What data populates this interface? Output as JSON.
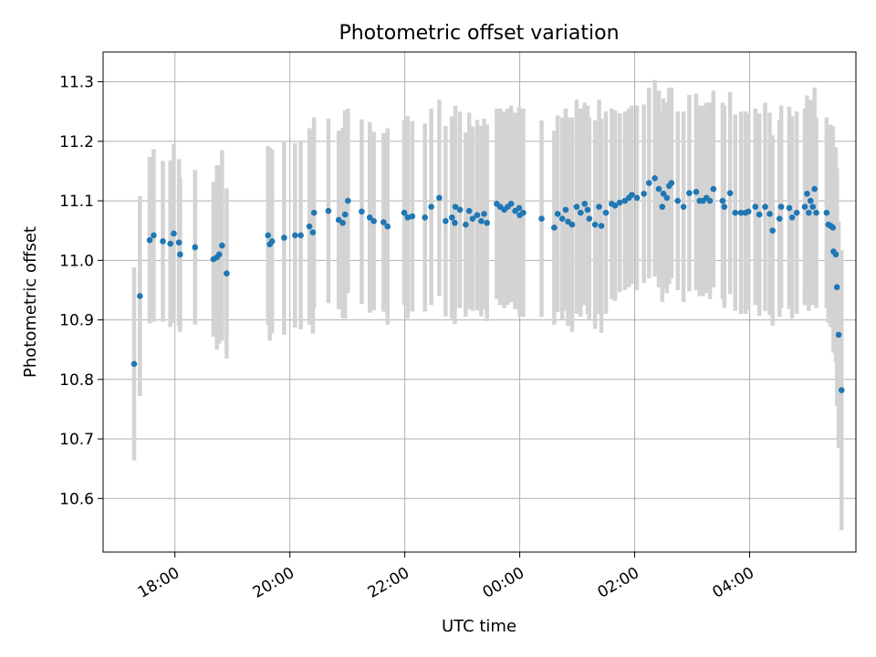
{
  "chart_data": {
    "type": "scatter",
    "title": "Photometric offset variation",
    "xlabel": "UTC time",
    "ylabel": "Photometric offset",
    "x_unit": "hours",
    "xlim": [
      16.75,
      29.85
    ],
    "ylim": [
      10.51,
      11.35
    ],
    "xticks": [
      {
        "value": 18,
        "label": "18:00"
      },
      {
        "value": 20,
        "label": "20:00"
      },
      {
        "value": 22,
        "label": "22:00"
      },
      {
        "value": 24,
        "label": "00:00"
      },
      {
        "value": 26,
        "label": "02:00"
      },
      {
        "value": 28,
        "label": "04:00"
      }
    ],
    "yticks": [
      {
        "value": 10.6,
        "label": "10.6"
      },
      {
        "value": 10.7,
        "label": "10.7"
      },
      {
        "value": 10.8,
        "label": "10.8"
      },
      {
        "value": 10.9,
        "label": "10.9"
      },
      {
        "value": 11.0,
        "label": "11.0"
      },
      {
        "value": 11.1,
        "label": "11.1"
      },
      {
        "value": 11.2,
        "label": "11.2"
      },
      {
        "value": 11.3,
        "label": "11.3"
      }
    ],
    "grid": true,
    "colors": {
      "points": "#1f77b4",
      "errorbars": "#d3d3d3",
      "grid": "#b0b0b0"
    },
    "series": [
      {
        "points": [
          [
            17.29,
            10.826,
            0.162
          ],
          [
            17.39,
            10.94,
            0.168
          ],
          [
            17.56,
            11.034,
            0.14
          ],
          [
            17.63,
            11.042,
            0.145
          ],
          [
            17.79,
            11.032,
            0.135
          ],
          [
            17.92,
            11.028,
            0.14
          ],
          [
            17.98,
            11.045,
            0.15
          ],
          [
            18.07,
            11.03,
            0.14
          ],
          [
            18.09,
            11.01,
            0.13
          ],
          [
            18.35,
            11.022,
            0.13
          ],
          [
            18.67,
            11.002,
            0.13
          ],
          [
            18.73,
            11.005,
            0.155
          ],
          [
            18.77,
            11.01,
            0.15
          ],
          [
            18.82,
            11.025,
            0.16
          ],
          [
            18.9,
            10.978,
            0.143
          ],
          [
            19.62,
            11.042,
            0.15
          ],
          [
            19.65,
            11.027,
            0.162
          ],
          [
            19.69,
            11.032,
            0.154
          ],
          [
            19.9,
            11.038,
            0.163
          ],
          [
            20.09,
            11.042,
            0.155
          ],
          [
            20.19,
            11.042,
            0.158
          ],
          [
            20.34,
            11.057,
            0.165
          ],
          [
            20.4,
            11.047,
            0.17
          ],
          [
            20.42,
            11.08,
            0.16
          ],
          [
            20.67,
            11.083,
            0.155
          ],
          [
            20.85,
            11.068,
            0.15
          ],
          [
            20.92,
            11.063,
            0.16
          ],
          [
            20.96,
            11.077,
            0.175
          ],
          [
            21.01,
            11.1,
            0.155
          ],
          [
            21.25,
            11.082,
            0.155
          ],
          [
            21.39,
            11.072,
            0.16
          ],
          [
            21.46,
            11.066,
            0.15
          ],
          [
            21.63,
            11.064,
            0.15
          ],
          [
            21.7,
            11.057,
            0.165
          ],
          [
            21.99,
            11.08,
            0.155
          ],
          [
            22.05,
            11.072,
            0.17
          ],
          [
            22.13,
            11.074,
            0.16
          ],
          [
            22.35,
            11.072,
            0.158
          ],
          [
            22.46,
            11.09,
            0.165
          ],
          [
            22.6,
            11.105,
            0.165
          ],
          [
            22.71,
            11.066,
            0.16
          ],
          [
            22.82,
            11.072,
            0.17
          ],
          [
            22.87,
            11.063,
            0.17
          ],
          [
            22.88,
            11.09,
            0.17
          ],
          [
            22.96,
            11.085,
            0.165
          ],
          [
            23.06,
            11.06,
            0.155
          ],
          [
            23.12,
            11.083,
            0.165
          ],
          [
            23.18,
            11.07,
            0.155
          ],
          [
            23.26,
            11.076,
            0.16
          ],
          [
            23.33,
            11.066,
            0.16
          ],
          [
            23.38,
            11.078,
            0.16
          ],
          [
            23.43,
            11.063,
            0.165
          ],
          [
            23.6,
            11.095,
            0.16
          ],
          [
            23.66,
            11.09,
            0.165
          ],
          [
            23.73,
            11.085,
            0.165
          ],
          [
            23.79,
            11.09,
            0.165
          ],
          [
            23.85,
            11.095,
            0.165
          ],
          [
            23.92,
            11.083,
            0.165
          ],
          [
            23.99,
            11.088,
            0.17
          ],
          [
            24.0,
            11.076,
            0.17
          ],
          [
            24.06,
            11.08,
            0.175
          ],
          [
            24.38,
            11.07,
            0.165
          ],
          [
            24.6,
            11.055,
            0.163
          ],
          [
            24.66,
            11.078,
            0.165
          ],
          [
            24.74,
            11.07,
            0.17
          ],
          [
            24.8,
            11.085,
            0.17
          ],
          [
            24.84,
            11.065,
            0.175
          ],
          [
            24.91,
            11.06,
            0.18
          ],
          [
            24.99,
            11.09,
            0.18
          ],
          [
            25.06,
            11.08,
            0.175
          ],
          [
            25.13,
            11.095,
            0.17
          ],
          [
            25.18,
            11.085,
            0.175
          ],
          [
            25.21,
            11.07,
            0.17
          ],
          [
            25.31,
            11.06,
            0.175
          ],
          [
            25.38,
            11.09,
            0.18
          ],
          [
            25.42,
            11.058,
            0.18
          ],
          [
            25.5,
            11.08,
            0.17
          ],
          [
            25.6,
            11.095,
            0.16
          ],
          [
            25.66,
            11.092,
            0.16
          ],
          [
            25.74,
            11.097,
            0.15
          ],
          [
            25.83,
            11.1,
            0.15
          ],
          [
            25.9,
            11.105,
            0.15
          ],
          [
            25.95,
            11.11,
            0.15
          ],
          [
            26.04,
            11.105,
            0.155
          ],
          [
            26.16,
            11.112,
            0.15
          ],
          [
            26.25,
            11.13,
            0.16
          ],
          [
            26.35,
            11.138,
            0.165
          ],
          [
            26.42,
            11.12,
            0.165
          ],
          [
            26.48,
            11.09,
            0.16
          ],
          [
            26.5,
            11.112,
            0.16
          ],
          [
            26.56,
            11.105,
            0.16
          ],
          [
            26.6,
            11.125,
            0.165
          ],
          [
            26.64,
            11.13,
            0.16
          ],
          [
            26.75,
            11.1,
            0.15
          ],
          [
            26.85,
            11.09,
            0.16
          ],
          [
            26.95,
            11.113,
            0.165
          ],
          [
            27.07,
            11.115,
            0.165
          ],
          [
            27.13,
            11.1,
            0.16
          ],
          [
            27.19,
            11.1,
            0.16
          ],
          [
            27.25,
            11.105,
            0.16
          ],
          [
            27.31,
            11.1,
            0.165
          ],
          [
            27.37,
            11.12,
            0.165
          ],
          [
            27.53,
            11.1,
            0.165
          ],
          [
            27.56,
            11.09,
            0.17
          ],
          [
            27.66,
            11.113,
            0.17
          ],
          [
            27.75,
            11.08,
            0.165
          ],
          [
            27.85,
            11.08,
            0.17
          ],
          [
            27.93,
            11.08,
            0.17
          ],
          [
            27.98,
            11.082,
            0.165
          ],
          [
            28.1,
            11.09,
            0.165
          ],
          [
            28.17,
            11.077,
            0.17
          ],
          [
            28.27,
            11.09,
            0.175
          ],
          [
            28.35,
            11.078,
            0.17
          ],
          [
            28.4,
            11.05,
            0.16
          ],
          [
            28.52,
            11.07,
            0.165
          ],
          [
            28.55,
            11.09,
            0.17
          ],
          [
            28.69,
            11.088,
            0.17
          ],
          [
            28.74,
            11.072,
            0.17
          ],
          [
            28.82,
            11.08,
            0.17
          ],
          [
            28.96,
            11.09,
            0.165
          ],
          [
            29.0,
            11.112,
            0.165
          ],
          [
            29.03,
            11.08,
            0.165
          ],
          [
            29.06,
            11.1,
            0.17
          ],
          [
            29.1,
            11.09,
            0.165
          ],
          [
            29.13,
            11.12,
            0.17
          ],
          [
            29.16,
            11.08,
            0.16
          ],
          [
            29.34,
            11.08,
            0.16
          ],
          [
            29.37,
            11.06,
            0.165
          ],
          [
            29.41,
            11.058,
            0.17
          ],
          [
            29.45,
            11.055,
            0.17
          ],
          [
            29.46,
            11.015,
            0.17
          ],
          [
            29.5,
            11.01,
            0.18
          ],
          [
            29.52,
            10.955,
            0.2
          ],
          [
            29.55,
            10.875,
            0.19
          ],
          [
            29.6,
            10.782,
            0.235
          ]
        ]
      }
    ]
  }
}
